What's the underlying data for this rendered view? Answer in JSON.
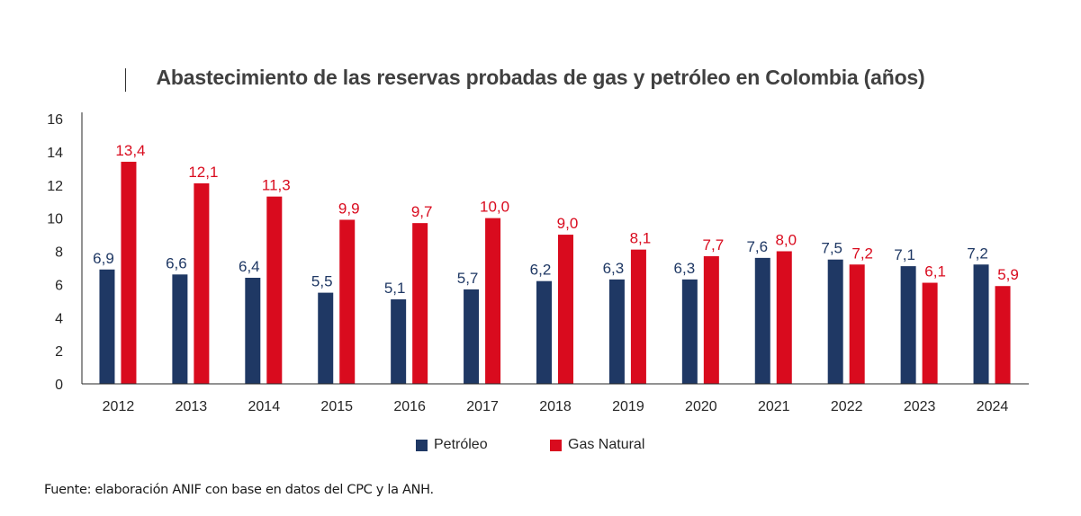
{
  "chart_data": {
    "type": "bar",
    "title": "Abastecimiento de las reservas probadas de gas y petróleo en Colombia (años)",
    "xlabel": "",
    "ylabel": "",
    "ylim": [
      0,
      16
    ],
    "yticks": [
      0,
      2,
      4,
      6,
      8,
      10,
      12,
      14,
      16
    ],
    "grid": false,
    "legend_position": "bottom",
    "categories": [
      "2012",
      "2013",
      "2014",
      "2015",
      "2016",
      "2017",
      "2018",
      "2019",
      "2020",
      "2021",
      "2022",
      "2023",
      "2024"
    ],
    "series": [
      {
        "name": "Petróleo",
        "color": "#1F3864",
        "values": [
          6.9,
          6.6,
          6.4,
          5.5,
          5.1,
          5.7,
          6.2,
          6.3,
          6.3,
          7.6,
          7.5,
          7.1,
          7.2
        ],
        "labels": [
          "6,9",
          "6,6",
          "6,4",
          "5,5",
          "5,1",
          "5,7",
          "6,2",
          "6,3",
          "6,3",
          "7,6",
          "7,5",
          "7,1",
          "7,2"
        ]
      },
      {
        "name": "Gas Natural",
        "color": "#D90B1E",
        "values": [
          13.4,
          12.1,
          11.3,
          9.9,
          9.7,
          10.0,
          9.0,
          8.1,
          7.7,
          8.0,
          7.2,
          6.1,
          5.9
        ],
        "labels": [
          "13,4",
          "12,1",
          "11,3",
          "9,9",
          "9,7",
          "10,0",
          "9,0",
          "8,1",
          "7,7",
          "8,0",
          "7,2",
          "6,1",
          "5,9"
        ]
      }
    ],
    "source": "Fuente: elaboración ANIF con base en datos del CPC y la ANH."
  }
}
